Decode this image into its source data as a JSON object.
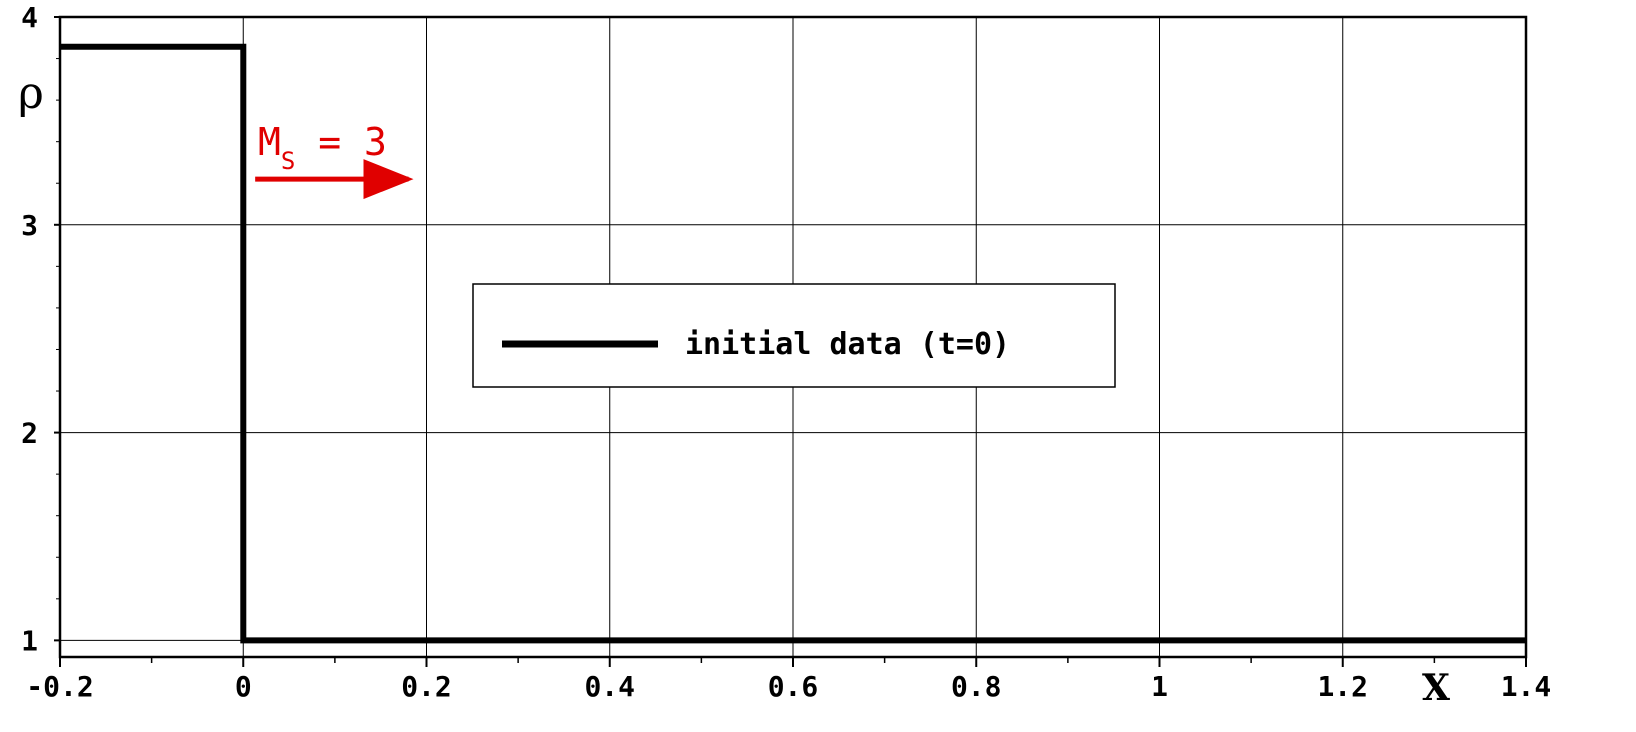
{
  "chart_data": {
    "type": "line",
    "xlabel": "X",
    "ylabel": "ρ",
    "xlim": [
      -0.2,
      1.4
    ],
    "ylim": [
      0.92,
      4.0
    ],
    "xticks": [
      -0.2,
      0,
      0.2,
      0.4,
      0.6,
      0.8,
      1,
      1.2,
      1.4
    ],
    "xtick_labels": [
      "-0.2",
      "0",
      "0.2",
      "0.4",
      "0.6",
      "0.8",
      "1",
      "1.2",
      "1.4"
    ],
    "yticks": [
      1,
      2,
      3,
      4
    ],
    "ytick_labels": [
      "1",
      "2",
      "3",
      "4"
    ],
    "grid": true,
    "legend_position": "center",
    "series": [
      {
        "name": "initial data (t=0)",
        "color": "#000000",
        "points": [
          [
            -0.2,
            3.857
          ],
          [
            0.0,
            3.857
          ],
          [
            0.0,
            1.0
          ],
          [
            1.4,
            1.0
          ]
        ]
      }
    ],
    "annotations": [
      {
        "text_main": "M",
        "text_sub": "S",
        "text_rest": " = 3",
        "color": "#e00000",
        "arrow": {
          "from": [
            0.013,
            3.22
          ],
          "to": [
            0.2,
            3.22
          ]
        }
      }
    ]
  }
}
